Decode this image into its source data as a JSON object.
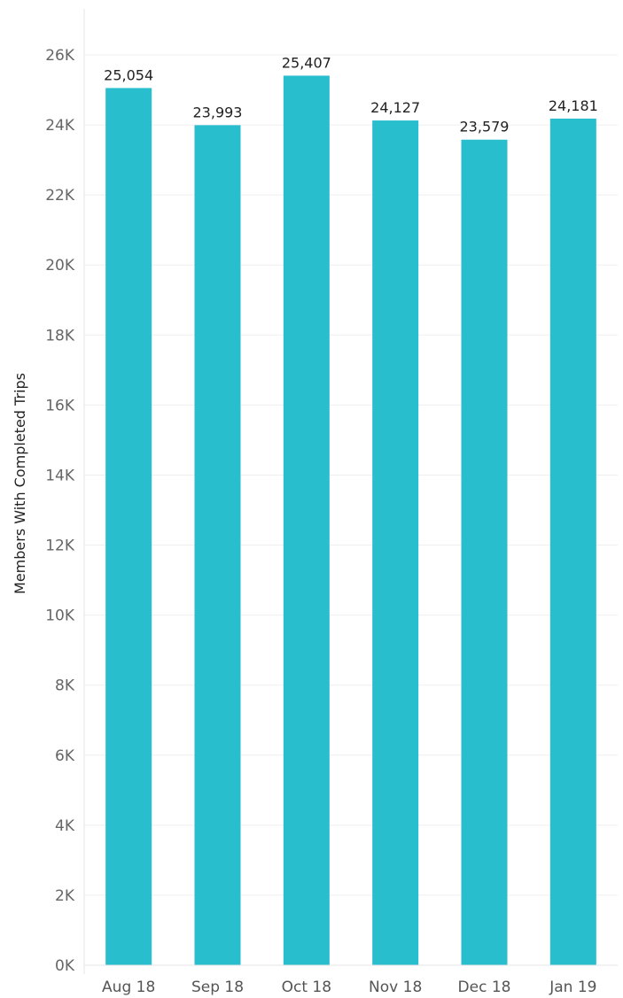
{
  "chart_data": {
    "type": "bar",
    "title": "",
    "xlabel": "",
    "ylabel": "Members With Completed Trips",
    "categories": [
      "Aug 18",
      "Sep 18",
      "Oct 18",
      "Nov 18",
      "Dec 18",
      "Jan 19"
    ],
    "values": [
      25054,
      23993,
      25407,
      24127,
      23579,
      24181
    ],
    "value_labels": [
      "25,054",
      "23,993",
      "25,407",
      "24,127",
      "23,579",
      "24,181"
    ],
    "ylim": [
      0,
      26000
    ],
    "yticks": [
      0,
      2000,
      4000,
      6000,
      8000,
      10000,
      12000,
      14000,
      16000,
      18000,
      20000,
      22000,
      24000,
      26000
    ],
    "ytick_labels": [
      "0K",
      "2K",
      "4K",
      "6K",
      "8K",
      "10K",
      "12K",
      "14K",
      "16K",
      "18K",
      "20K",
      "22K",
      "24K",
      "26K"
    ],
    "bar_color": "#29BECE",
    "grid": true,
    "legend": "none"
  }
}
